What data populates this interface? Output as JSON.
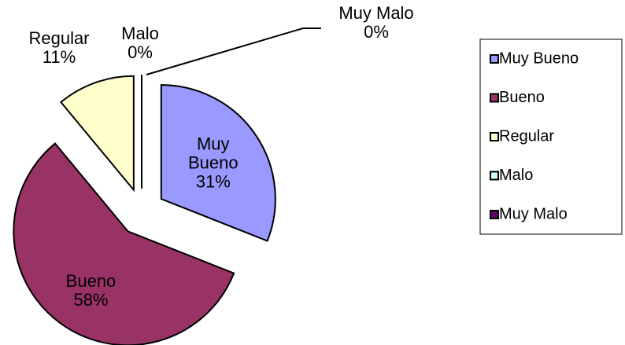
{
  "chart_data": {
    "type": "pie",
    "categories": [
      "Muy Bueno",
      "Bueno",
      "Regular",
      "Malo",
      "Muy Malo"
    ],
    "values": [
      31,
      58,
      11,
      0,
      0
    ],
    "value_labels": [
      "31%",
      "58%",
      "11%",
      "0%",
      "0%"
    ],
    "colors": [
      "#9999ff",
      "#993366",
      "#ffffcc",
      "#ccffff",
      "#660066"
    ],
    "legend": "right"
  }
}
